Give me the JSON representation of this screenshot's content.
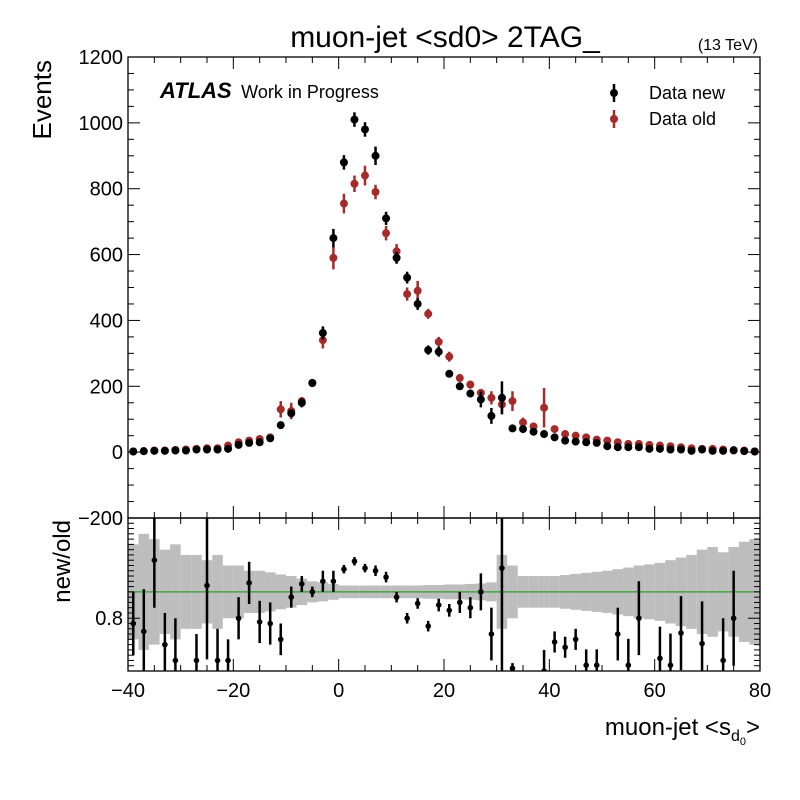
{
  "chart_data": {
    "type": "scatter",
    "title": "muon-jet <sd0> 2TAG_",
    "energy_label": "(13 TeV)",
    "atlas_label": "ATLAS",
    "atlas_sublabel": "Work in Progress",
    "xlabel": "muon-jet <s",
    "xlabel_sub": "d",
    "xlabel_subsub": "0",
    "xlabel_end": ">",
    "ylabel": "Events",
    "ratio_ylabel": "new/old",
    "xlim": [
      -40,
      80
    ],
    "ylim": [
      -200,
      1200
    ],
    "ratio_ylim": [
      0.7,
      0.99
    ],
    "ratio_reference": 0.85,
    "legend_position": "top-right",
    "grid": false,
    "colors": {
      "new": "#000000",
      "old": "#a52a2a",
      "band": "#bdbdbd",
      "reference": "#2ca02c"
    },
    "x_ticks": [
      "-40",
      "-20",
      "0",
      "20",
      "40",
      "60",
      "80"
    ],
    "y_ticks": [
      "-200",
      "0",
      "200",
      "400",
      "600",
      "800",
      "1000",
      "1200"
    ],
    "ratio_y_ticks": [
      "0.8"
    ],
    "series": [
      {
        "name": "Data new",
        "x": [
          -39,
          -37,
          -35,
          -33,
          -31,
          -29,
          -27,
          -25,
          -23,
          -21,
          -19,
          -17,
          -15,
          -13,
          -11,
          -9,
          -7,
          -5,
          -3,
          -1,
          1,
          3,
          5,
          7,
          9,
          11,
          13,
          15,
          17,
          19,
          21,
          23,
          25,
          27,
          29,
          31,
          33,
          35,
          37,
          39,
          41,
          43,
          45,
          47,
          49,
          51,
          53,
          55,
          57,
          59,
          61,
          63,
          65,
          67,
          69,
          71,
          73,
          75,
          77,
          79
        ],
        "y": [
          2,
          3,
          4,
          4,
          5,
          5,
          8,
          8,
          8,
          10,
          22,
          28,
          30,
          42,
          82,
          118,
          150,
          210,
          362,
          650,
          880,
          1010,
          980,
          900,
          710,
          590,
          530,
          450,
          310,
          305,
          238,
          200,
          178,
          160,
          110,
          165,
          72,
          70,
          62,
          55,
          45,
          35,
          32,
          30,
          28,
          18,
          15,
          15,
          15,
          10,
          10,
          8,
          8,
          4,
          8,
          4,
          4,
          6,
          3,
          2
        ],
        "err": [
          2,
          2,
          2,
          2,
          2,
          2,
          3,
          3,
          3,
          3,
          5,
          5,
          5,
          6,
          10,
          12,
          14,
          12,
          20,
          28,
          22,
          22,
          22,
          28,
          20,
          18,
          18,
          18,
          14,
          15,
          10,
          10,
          10,
          24,
          24,
          50,
          8,
          8,
          8,
          8,
          6,
          6,
          6,
          6,
          6,
          4,
          4,
          4,
          4,
          4,
          4,
          3,
          3,
          3,
          3,
          2,
          2,
          2,
          2,
          2
        ]
      },
      {
        "name": "Data old",
        "x": [
          -39,
          -37,
          -35,
          -33,
          -31,
          -29,
          -27,
          -25,
          -23,
          -21,
          -19,
          -17,
          -15,
          -13,
          -11,
          -9,
          -7,
          -5,
          -3,
          -1,
          1,
          3,
          5,
          7,
          9,
          11,
          13,
          15,
          17,
          19,
          21,
          23,
          25,
          27,
          29,
          31,
          33,
          35,
          37,
          39,
          41,
          43,
          45,
          47,
          49,
          51,
          53,
          55,
          57,
          59,
          61,
          63,
          65,
          67,
          69,
          71,
          73,
          75,
          77,
          79
        ],
        "y": [
          2,
          3,
          5,
          5,
          7,
          8,
          10,
          12,
          12,
          20,
          30,
          35,
          40,
          45,
          130,
          125,
          155,
          210,
          340,
          590,
          755,
          815,
          840,
          790,
          665,
          610,
          480,
          490,
          420,
          335,
          290,
          225,
          205,
          180,
          165,
          145,
          155,
          90,
          78,
          135,
          70,
          55,
          50,
          45,
          38,
          35,
          30,
          25,
          25,
          22,
          20,
          18,
          15,
          12,
          10,
          10,
          8,
          5,
          5,
          2
        ],
        "err": [
          2,
          2,
          2,
          2,
          2,
          2,
          3,
          3,
          3,
          4,
          5,
          5,
          6,
          6,
          25,
          25,
          12,
          12,
          25,
          35,
          30,
          25,
          30,
          22,
          22,
          22,
          20,
          30,
          15,
          15,
          15,
          12,
          12,
          12,
          20,
          30,
          30,
          15,
          12,
          60,
          10,
          8,
          8,
          8,
          6,
          6,
          5,
          5,
          5,
          5,
          4,
          4,
          4,
          3,
          3,
          3,
          3,
          2,
          2,
          2
        ]
      }
    ],
    "ratio": {
      "name": "new/old",
      "x": [
        -39,
        -37,
        -35,
        -33,
        -31,
        -29,
        -27,
        -25,
        -23,
        -21,
        -19,
        -17,
        -15,
        -13,
        -11,
        -9,
        -7,
        -5,
        -3,
        -1,
        1,
        3,
        5,
        7,
        9,
        11,
        13,
        15,
        17,
        19,
        21,
        23,
        25,
        27,
        29,
        31,
        33,
        35,
        37,
        39,
        41,
        43,
        45,
        47,
        49,
        51,
        53,
        55,
        57,
        59,
        61,
        63,
        65,
        67,
        69,
        71,
        73,
        75,
        77,
        79
      ],
      "y": [
        0.79,
        0.775,
        0.91,
        0.75,
        0.72,
        0.5,
        0.72,
        0.862,
        0.72,
        0.72,
        0.8,
        0.867,
        0.793,
        0.79,
        0.76,
        0.84,
        0.865,
        0.85,
        0.87,
        0.87,
        0.893,
        0.908,
        0.895,
        0.89,
        0.878,
        0.84,
        0.8,
        0.828,
        0.785,
        0.825,
        0.815,
        0.83,
        0.82,
        0.85,
        0.77,
        0.895,
        0.705,
        0.6,
        0.6,
        0.7,
        0.755,
        0.745,
        0.76,
        0.711,
        0.711,
        0.6,
        0.77,
        0.711,
        0.8,
        0.6,
        0.724,
        0.711,
        0.772,
        0.6,
        0.752,
        0.6,
        0.72,
        0.8,
        0.6,
        0.6
      ],
      "err": [
        0.06,
        0.08,
        0.09,
        0.06,
        0.08,
        0.1,
        0.05,
        0.14,
        0.06,
        0.04,
        0.04,
        0.04,
        0.04,
        0.04,
        0.03,
        0.02,
        0.015,
        0.01,
        0.02,
        0.02,
        0.008,
        0.008,
        0.008,
        0.01,
        0.01,
        0.01,
        0.01,
        0.01,
        0.01,
        0.012,
        0.012,
        0.02,
        0.02,
        0.035,
        0.05,
        0.2,
        0.01,
        0.04,
        0.04,
        0.04,
        0.02,
        0.02,
        0.02,
        0.03,
        0.03,
        0.05,
        0.05,
        0.05,
        0.07,
        0.07,
        0.06,
        0.06,
        0.07,
        0.07,
        0.08,
        0.08,
        0.08,
        0.09,
        0.09,
        0.1
      ],
      "band_edges": [
        -40,
        -38,
        -36,
        -34,
        -32,
        -30,
        -28,
        -26,
        -24,
        -22,
        -20,
        -18,
        -16,
        -14,
        -12,
        -10,
        -8,
        -6,
        -4,
        -2,
        0,
        2,
        4,
        6,
        8,
        10,
        12,
        14,
        16,
        18,
        20,
        22,
        24,
        26,
        28,
        30,
        32,
        34,
        36,
        38,
        40,
        42,
        44,
        46,
        48,
        50,
        52,
        54,
        56,
        58,
        60,
        62,
        64,
        66,
        68,
        70,
        72,
        74,
        76,
        78,
        80
      ],
      "band_half": [
        0.09,
        0.11,
        0.1,
        0.08,
        0.09,
        0.07,
        0.07,
        0.06,
        0.07,
        0.05,
        0.05,
        0.04,
        0.04,
        0.037,
        0.033,
        0.03,
        0.025,
        0.02,
        0.018,
        0.015,
        0.012,
        0.012,
        0.012,
        0.012,
        0.012,
        0.012,
        0.012,
        0.012,
        0.013,
        0.013,
        0.014,
        0.014,
        0.015,
        0.016,
        0.018,
        0.07,
        0.05,
        0.03,
        0.03,
        0.03,
        0.03,
        0.032,
        0.034,
        0.036,
        0.038,
        0.04,
        0.043,
        0.046,
        0.05,
        0.052,
        0.055,
        0.06,
        0.065,
        0.07,
        0.08,
        0.085,
        0.075,
        0.085,
        0.095,
        0.1
      ]
    }
  }
}
